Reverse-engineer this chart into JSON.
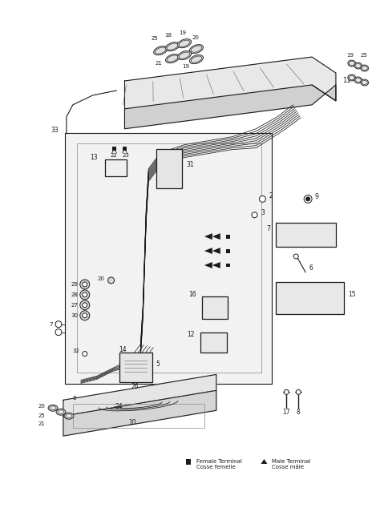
{
  "bg_color": "#ffffff",
  "line_color": "#404040",
  "dark": "#1a1a1a",
  "gray": "#888888",
  "light_gray": "#cccccc",
  "fig_width": 4.74,
  "fig_height": 6.64,
  "dpi": 100,
  "legend_female": "Female Terminal\nCosse femelle",
  "legend_male": "Male Terminal\nCosse mâle"
}
